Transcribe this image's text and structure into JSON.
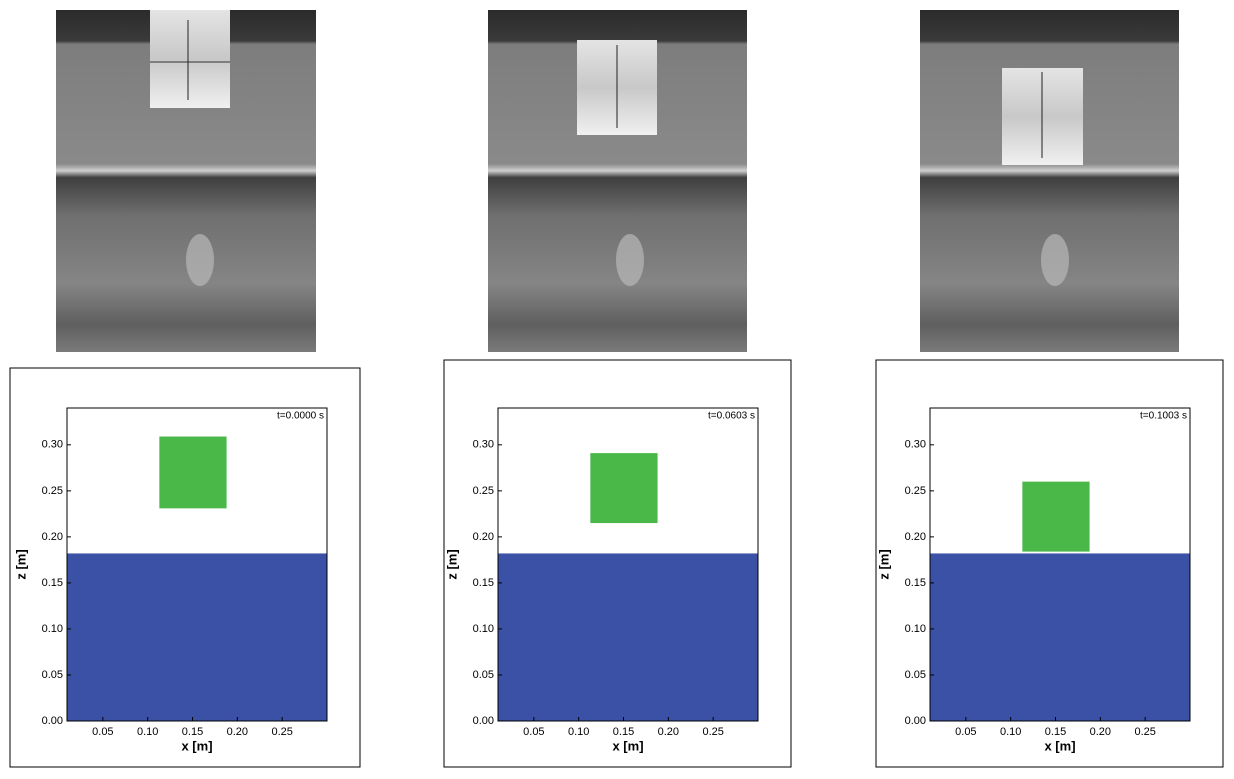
{
  "chart_data": [
    {
      "type": "contour",
      "annotation": "t=0.0000 s",
      "xlabel": "x [m]",
      "ylabel": "z [m]",
      "xlim": [
        0.01,
        0.3
      ],
      "ylim": [
        0,
        0.34
      ],
      "xticks": [
        0.05,
        {
          "value": 0.1,
          "label": "0.10"
        },
        0.15,
        {
          "value": 0.2,
          "label": "0.20"
        },
        0.25
      ],
      "yticks": [
        {
          "value": 0,
          "label": "0.00"
        },
        0.05,
        {
          "value": 0.1,
          "label": "0.10"
        },
        0.15,
        {
          "value": 0.2,
          "label": "0.20"
        },
        0.25,
        {
          "value": 0.3,
          "label": "0.30"
        }
      ],
      "water_level": 0.182,
      "water_color": "#3a51a6",
      "body": {
        "x": [
          0.113,
          0.188
        ],
        "z": [
          0.231,
          0.309
        ],
        "color": "#49b848"
      }
    },
    {
      "type": "contour",
      "annotation": "t=0.0603 s",
      "xlabel": "x [m]",
      "ylabel": "z [m]",
      "xlim": [
        0.01,
        0.3
      ],
      "ylim": [
        0,
        0.34
      ],
      "xticks": [
        0.05,
        {
          "value": 0.1,
          "label": "0.10"
        },
        0.15,
        {
          "value": 0.2,
          "label": "0.20"
        },
        0.25
      ],
      "yticks": [
        {
          "value": 0,
          "label": "0.00"
        },
        0.05,
        {
          "value": 0.1,
          "label": "0.10"
        },
        0.15,
        {
          "value": 0.2,
          "label": "0.20"
        },
        0.25,
        {
          "value": 0.3,
          "label": "0.30"
        }
      ],
      "water_level": 0.182,
      "water_color": "#3a51a6",
      "body": {
        "x": [
          0.113,
          0.188
        ],
        "z": [
          0.215,
          0.291
        ],
        "color": "#49b848"
      }
    },
    {
      "type": "contour",
      "annotation": "t=0.1003 s",
      "xlabel": "x [m]",
      "ylabel": "z [m]",
      "xlim": [
        0.01,
        0.3
      ],
      "ylim": [
        0,
        0.34
      ],
      "xticks": [
        0.05,
        {
          "value": 0.1,
          "label": "0.10"
        },
        0.15,
        {
          "value": 0.2,
          "label": "0.20"
        },
        0.25
      ],
      "yticks": [
        {
          "value": 0,
          "label": "0.00"
        },
        0.05,
        {
          "value": 0.1,
          "label": "0.10"
        },
        0.15,
        {
          "value": 0.2,
          "label": "0.20"
        },
        0.25,
        {
          "value": 0.3,
          "label": "0.30"
        }
      ],
      "water_level": 0.182,
      "water_color": "#3a51a6",
      "body": {
        "x": [
          0.113,
          0.188
        ],
        "z": [
          0.184,
          0.26
        ],
        "color": "#49b848"
      }
    }
  ]
}
